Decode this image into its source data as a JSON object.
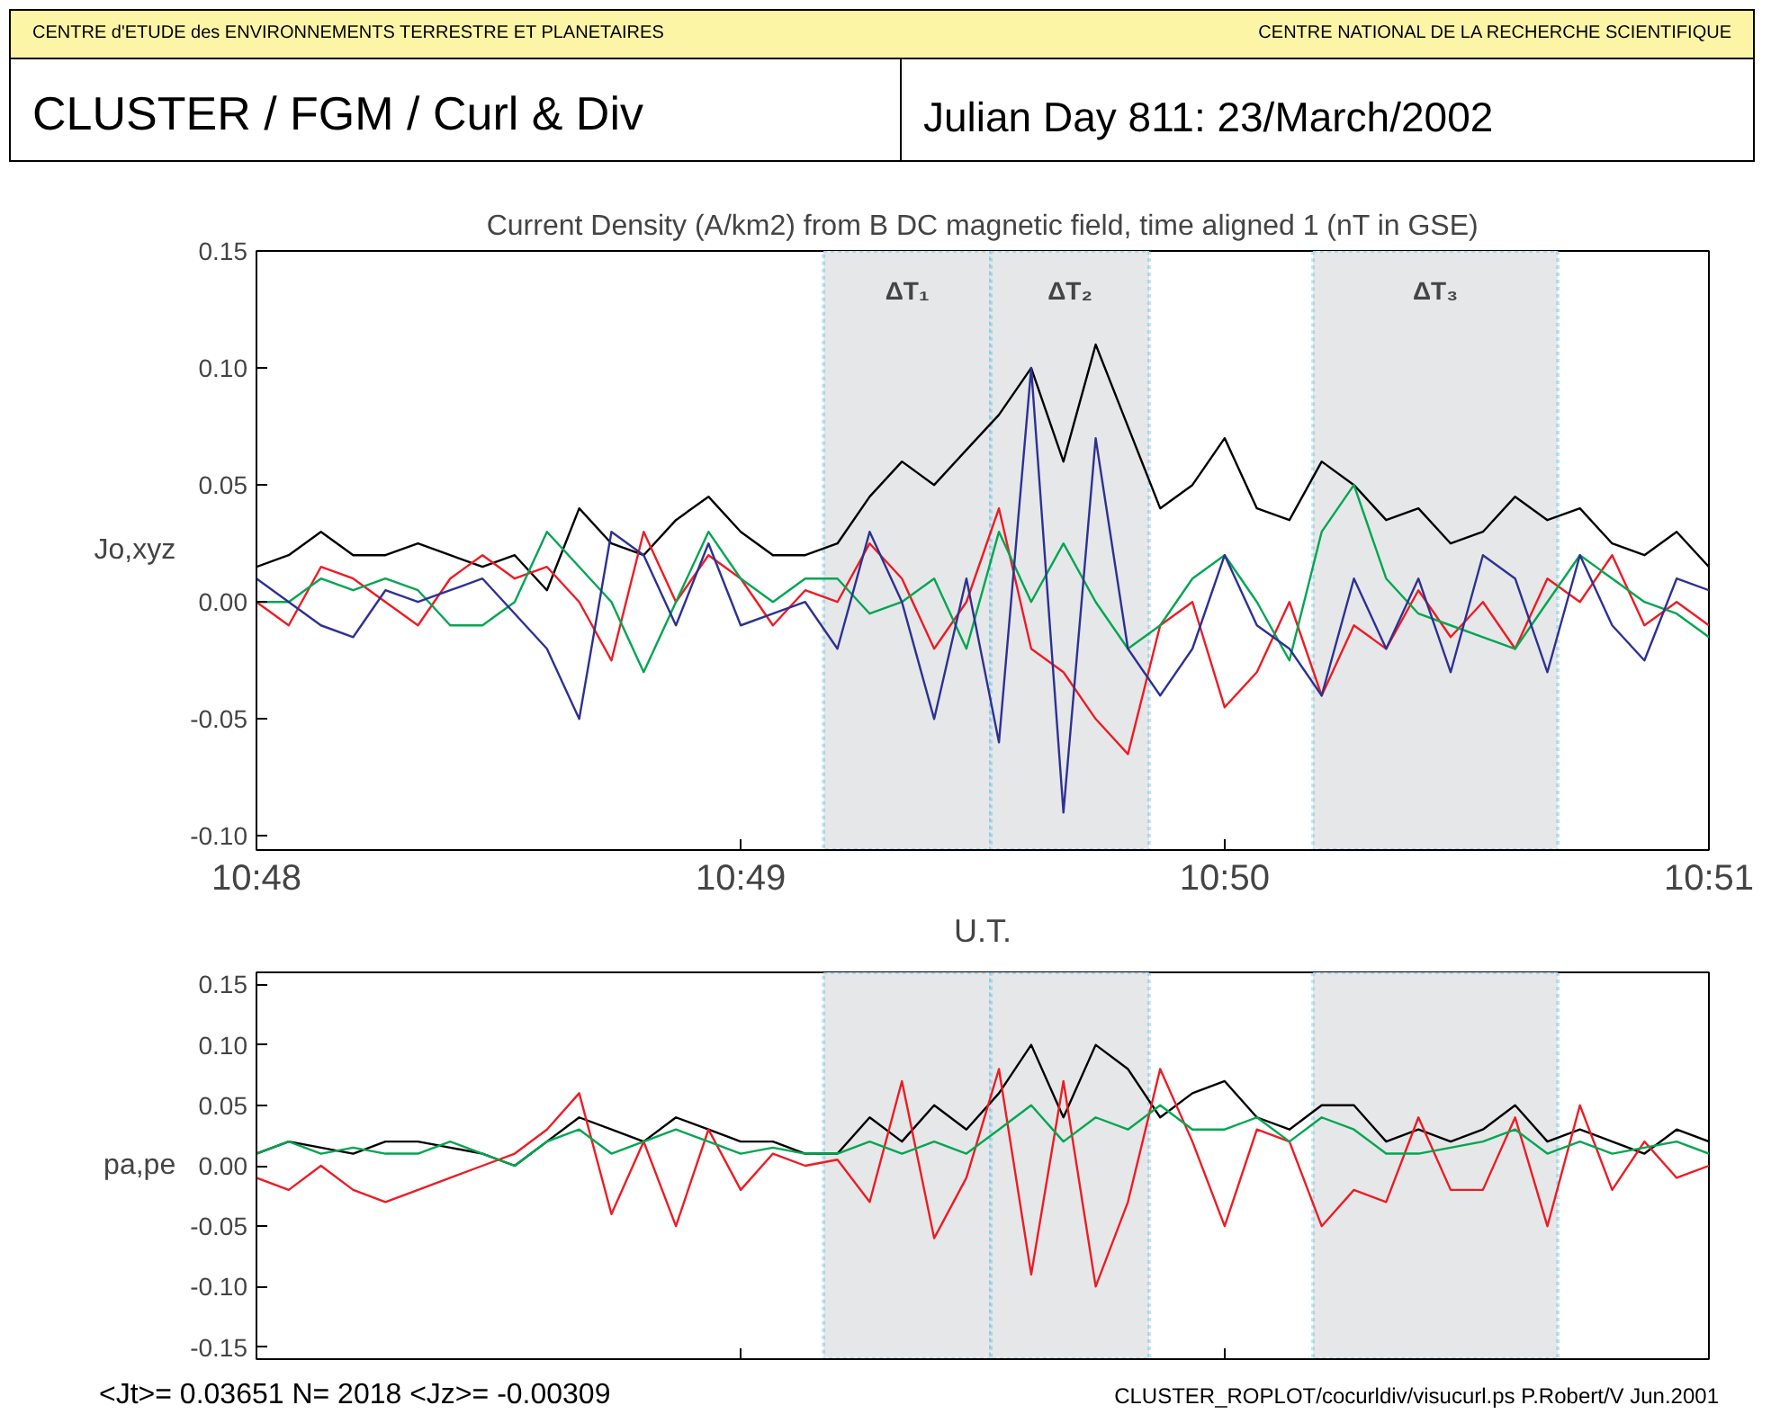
{
  "chart_data": [
    {
      "type": "line",
      "title": "Current Density (A/km2) from B DC magnetic field, time aligned 1 (nT in GSE)",
      "xlabel": "U.T.",
      "ylabel": "Jo,xyz",
      "annotations": [
        "CENTRE d'ETUDE des ENVIRONNEMENTS TERRESTRE ET PLANETAIRES",
        "CENTRE NATIONAL DE LA RECHERCHE SCIENTIFIQUE",
        "CLUSTER / FGM / Curl & Div",
        "Julian Day  811:  23/March/2002"
      ],
      "x": [
        10.8,
        10.80111,
        10.80222,
        10.80333,
        10.80444,
        10.80556,
        10.80667,
        10.80778,
        10.80889,
        10.81,
        10.81111,
        10.81222,
        10.81333,
        10.81444,
        10.81556,
        10.81667,
        10.81778,
        10.81889,
        10.82,
        10.82111,
        10.82222,
        10.82333,
        10.82444,
        10.82556,
        10.82667,
        10.82778,
        10.82889,
        10.83,
        10.83111,
        10.83222,
        10.83333,
        10.83444,
        10.83556,
        10.83667,
        10.83778,
        10.83889,
        10.84,
        10.84111,
        10.84222,
        10.84333,
        10.84444,
        10.84556,
        10.84667,
        10.84778,
        10.84889,
        10.85
      ],
      "xlim": [
        10.8,
        10.85
      ],
      "xticks": [
        {
          "value": 10.8,
          "label": "10:48"
        },
        {
          "value": 10.81667,
          "label": "10:49"
        },
        {
          "value": 10.83333,
          "label": "10:50"
        },
        {
          "value": 10.85,
          "label": "10:51"
        }
      ],
      "ylim": [
        -0.106,
        0.15
      ],
      "yticks": [
        {
          "value": -0.1,
          "label": "-0.10"
        },
        {
          "value": -0.05,
          "label": "-0.05"
        },
        {
          "value": 0,
          "label": "0.00"
        },
        {
          "value": 0.05,
          "label": "0.05"
        },
        {
          "value": 0.1,
          "label": "0.10"
        },
        {
          "value": 0.15,
          "label": "0.15"
        }
      ],
      "bands": [
        {
          "axis": "x",
          "from": 10.81952,
          "to": 10.82528,
          "label": "ΔT₁",
          "color": "#e6e7e9"
        },
        {
          "axis": "x",
          "from": 10.82528,
          "to": 10.83073,
          "label": "ΔT₂",
          "color": "#e6e7e9"
        },
        {
          "axis": "x",
          "from": 10.83637,
          "to": 10.8448,
          "label": "ΔT₃",
          "color": "#e6e7e9"
        }
      ],
      "series": [
        {
          "color": "#000000",
          "values": [
            0.015,
            0.02,
            0.03,
            0.02,
            0.02,
            0.025,
            0.02,
            0.015,
            0.02,
            0.005,
            0.04,
            0.025,
            0.02,
            0.035,
            0.045,
            0.03,
            0.02,
            0.02,
            0.025,
            0.045,
            0.06,
            0.05,
            0.065,
            0.08,
            0.1,
            0.06,
            0.11,
            0.075,
            0.04,
            0.05,
            0.07,
            0.04,
            0.035,
            0.06,
            0.05,
            0.035,
            0.04,
            0.025,
            0.03,
            0.045,
            0.035,
            0.04,
            0.025,
            0.02,
            0.03,
            0.015
          ]
        },
        {
          "color": "#ed1c24",
          "values": [
            0.0,
            -0.01,
            0.015,
            0.01,
            0.0,
            -0.01,
            0.01,
            0.02,
            0.01,
            0.015,
            0.0,
            -0.025,
            0.03,
            0.0,
            0.02,
            0.01,
            -0.01,
            0.005,
            0.0,
            0.025,
            0.01,
            -0.02,
            0.0,
            0.04,
            -0.02,
            -0.03,
            -0.05,
            -0.065,
            -0.01,
            0.0,
            -0.045,
            -0.03,
            0.0,
            -0.04,
            -0.01,
            -0.02,
            0.005,
            -0.015,
            0.0,
            -0.02,
            0.01,
            0.0,
            0.02,
            -0.01,
            0.0,
            -0.01
          ]
        },
        {
          "color": "#00a651",
          "values": [
            0.0,
            0.0,
            0.01,
            0.005,
            0.01,
            0.005,
            -0.01,
            -0.01,
            0.0,
            0.03,
            0.015,
            0.0,
            -0.03,
            0.0,
            0.03,
            0.01,
            0.0,
            0.01,
            0.01,
            -0.005,
            0.0,
            0.01,
            -0.02,
            0.03,
            0.0,
            0.025,
            0.0,
            -0.02,
            -0.01,
            0.01,
            0.02,
            0.0,
            -0.025,
            0.03,
            0.05,
            0.01,
            -0.005,
            -0.01,
            -0.015,
            -0.02,
            0.0,
            0.02,
            0.01,
            0.0,
            -0.005,
            -0.015
          ]
        },
        {
          "color": "#2e3192",
          "values": [
            0.01,
            0.0,
            -0.01,
            -0.015,
            0.005,
            0.0,
            0.005,
            0.01,
            -0.005,
            -0.02,
            -0.05,
            0.03,
            0.02,
            -0.01,
            0.025,
            -0.01,
            -0.005,
            0.0,
            -0.02,
            0.03,
            0.0,
            -0.05,
            0.01,
            -0.06,
            0.1,
            -0.09,
            0.07,
            -0.02,
            -0.04,
            -0.02,
            0.02,
            -0.01,
            -0.02,
            -0.04,
            0.01,
            -0.02,
            0.01,
            -0.03,
            0.02,
            0.01,
            -0.03,
            0.02,
            -0.01,
            -0.025,
            0.01,
            0.005
          ]
        }
      ]
    },
    {
      "type": "line",
      "ylabel": "pa,pe",
      "tick_labels": "y",
      "annotations": [
        "<Jt>= 0.03651   N= 2018 <Jz>= -0.00309",
        "CLUSTER_ROPLOT/cocurldiv/visucurl.ps  P.Robert/V Jun.2001"
      ],
      "x": [
        10.8,
        10.80111,
        10.80222,
        10.80333,
        10.80444,
        10.80556,
        10.80667,
        10.80778,
        10.80889,
        10.81,
        10.81111,
        10.81222,
        10.81333,
        10.81444,
        10.81556,
        10.81667,
        10.81778,
        10.81889,
        10.82,
        10.82111,
        10.82222,
        10.82333,
        10.82444,
        10.82556,
        10.82667,
        10.82778,
        10.82889,
        10.83,
        10.83111,
        10.83222,
        10.83333,
        10.83444,
        10.83556,
        10.83667,
        10.83778,
        10.83889,
        10.84,
        10.84111,
        10.84222,
        10.84333,
        10.84444,
        10.84556,
        10.84667,
        10.84778,
        10.84889,
        10.85
      ],
      "xlim": [
        10.8,
        10.85
      ],
      "xticks": [
        {
          "value": 10.8,
          "label": null
        },
        {
          "value": 10.81667,
          "label": null
        },
        {
          "value": 10.83333,
          "label": null
        },
        {
          "value": 10.85,
          "label": null
        }
      ],
      "ylim": [
        -0.16,
        0.16
      ],
      "yticks": [
        {
          "value": -0.15,
          "label": "-0.15"
        },
        {
          "value": -0.1,
          "label": "-0.10"
        },
        {
          "value": -0.05,
          "label": "-0.05"
        },
        {
          "value": 0,
          "label": "0.00"
        },
        {
          "value": 0.05,
          "label": "0.05"
        },
        {
          "value": 0.1,
          "label": "0.10"
        },
        {
          "value": 0.15,
          "label": "0.15"
        }
      ],
      "bands": [
        {
          "axis": "x",
          "from": 10.81952,
          "to": 10.82528,
          "color": "#e6e7e9"
        },
        {
          "axis": "x",
          "from": 10.82528,
          "to": 10.83073,
          "color": "#e6e7e9"
        },
        {
          "axis": "x",
          "from": 10.83637,
          "to": 10.8448,
          "color": "#e6e7e9"
        }
      ],
      "series": [
        {
          "color": "#000000",
          "values": [
            0.01,
            0.02,
            0.015,
            0.01,
            0.02,
            0.02,
            0.015,
            0.01,
            0.0,
            0.02,
            0.04,
            0.03,
            0.02,
            0.04,
            0.03,
            0.02,
            0.02,
            0.01,
            0.01,
            0.04,
            0.02,
            0.05,
            0.03,
            0.06,
            0.1,
            0.04,
            0.1,
            0.08,
            0.04,
            0.06,
            0.07,
            0.04,
            0.03,
            0.05,
            0.05,
            0.02,
            0.03,
            0.02,
            0.03,
            0.05,
            0.02,
            0.03,
            0.02,
            0.01,
            0.03,
            0.02
          ]
        },
        {
          "color": "#ed1c24",
          "values": [
            -0.01,
            -0.02,
            0.0,
            -0.02,
            -0.03,
            -0.02,
            -0.01,
            0.0,
            0.01,
            0.03,
            0.06,
            -0.04,
            0.02,
            -0.05,
            0.03,
            -0.02,
            0.01,
            0.0,
            0.005,
            -0.03,
            0.07,
            -0.06,
            -0.01,
            0.08,
            -0.09,
            0.07,
            -0.1,
            -0.03,
            0.08,
            0.02,
            -0.05,
            0.03,
            0.02,
            -0.05,
            -0.02,
            -0.03,
            0.04,
            -0.02,
            -0.02,
            0.04,
            -0.05,
            0.05,
            -0.02,
            0.02,
            -0.01,
            0.0
          ]
        },
        {
          "color": "#00a651",
          "values": [
            0.01,
            0.02,
            0.01,
            0.015,
            0.01,
            0.01,
            0.02,
            0.01,
            0.0,
            0.02,
            0.03,
            0.01,
            0.02,
            0.03,
            0.02,
            0.01,
            0.015,
            0.01,
            0.01,
            0.02,
            0.01,
            0.02,
            0.01,
            0.03,
            0.05,
            0.02,
            0.04,
            0.03,
            0.05,
            0.03,
            0.03,
            0.04,
            0.02,
            0.04,
            0.03,
            0.01,
            0.01,
            0.015,
            0.02,
            0.03,
            0.01,
            0.02,
            0.01,
            0.015,
            0.02,
            0.01
          ]
        }
      ]
    }
  ]
}
